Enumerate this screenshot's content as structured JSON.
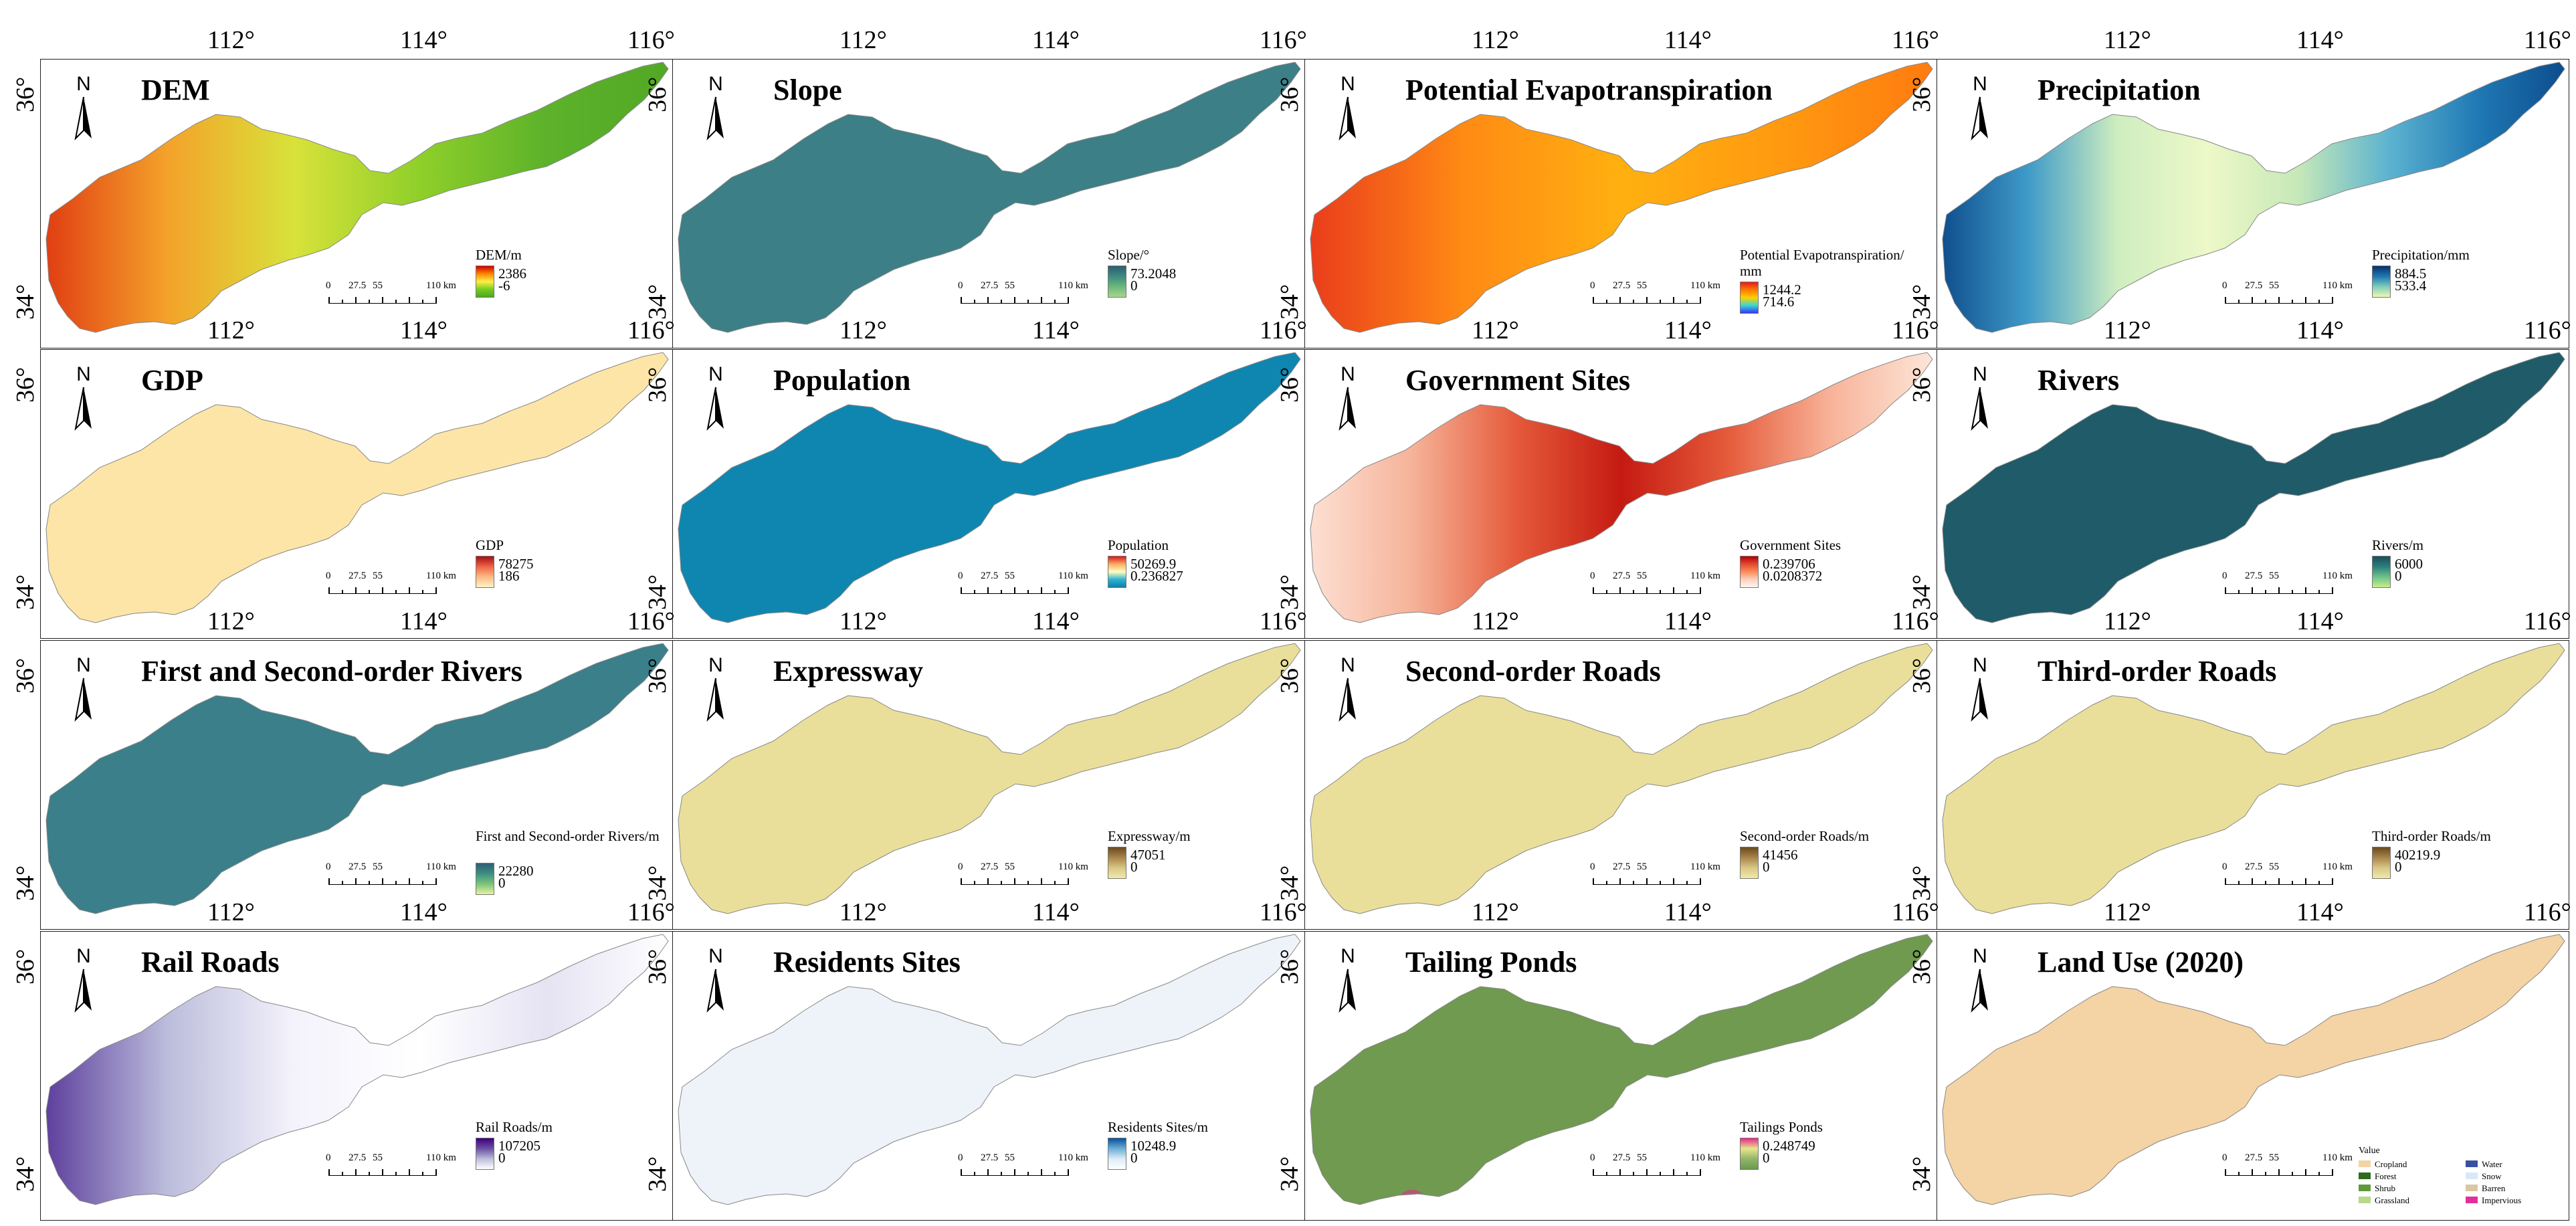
{
  "axis_labels": {
    "longitude": [
      "112°",
      "114°",
      "116°"
    ],
    "latitude": [
      "34°",
      "36°"
    ]
  },
  "north_label": "N",
  "scale_labels": [
    "0",
    "27.5",
    "55",
    "110 km"
  ],
  "panels": [
    {
      "title": "DEM",
      "legend_title": "DEM/m",
      "max": "2386",
      "min": "-6",
      "ramp": [
        "#cc0000",
        "#ff8800",
        "#ffee44",
        "#77cc22",
        "#4aa81e"
      ],
      "fill": "dem"
    },
    {
      "title": "Slope",
      "legend_title": "Slope/°",
      "max": "73.2048",
      "min": "0",
      "ramp": [
        "#2e5e72",
        "#3f8a82",
        "#6bb87a",
        "#a7d68b"
      ],
      "fill": "slope"
    },
    {
      "title": "Potential Evapotranspiration",
      "legend_title": "Potential Evapotranspiration/ mm",
      "max": "1244.2",
      "min": "714.6",
      "ramp": [
        "#e51c1c",
        "#ff7a00",
        "#ffd000",
        "#3ad9d0",
        "#3535ff"
      ],
      "fill": "pet"
    },
    {
      "title": "Precipitation",
      "legend_title": "Precipitation/mm",
      "max": "884.5",
      "min": "533.4",
      "ramp": [
        "#08306b",
        "#1f78b4",
        "#7fcdbb",
        "#edf8b1"
      ],
      "fill": "precip"
    },
    {
      "title": "GDP",
      "legend_title": "GDP",
      "max": "78275",
      "min": "186",
      "ramp": [
        "#a50f15",
        "#ef6548",
        "#fdbb84",
        "#fff3c4"
      ],
      "fill": "gdp"
    },
    {
      "title": "Population",
      "legend_title": "Population",
      "max": "50269.9",
      "min": "0.236827",
      "ramp": [
        "#d7191c",
        "#fdae61",
        "#ffffbf",
        "#2cb2d4",
        "#0e7fa6"
      ],
      "fill": "pop"
    },
    {
      "title": "Government Sites",
      "legend_title": "Government Sites",
      "max": "0.239706",
      "min": "0.0208372",
      "ramp": [
        "#b30000",
        "#e34a33",
        "#fc8d59",
        "#fdd0c0",
        "#fff5f0"
      ],
      "fill": "gov"
    },
    {
      "title": "Rivers",
      "legend_title": "Rivers/m",
      "max": "6000",
      "min": "0",
      "ramp": [
        "#1d4d5c",
        "#2c7f7c",
        "#6cc28a",
        "#c6f08a"
      ],
      "fill": "rivers"
    },
    {
      "title": "First and Second-order Rivers",
      "legend_title": "First and Second-order Rivers/m",
      "max": "22280",
      "min": "0",
      "ramp": [
        "#2f5f73",
        "#3c8f84",
        "#7cc479",
        "#e8f2a0"
      ],
      "fill": "rivers12"
    },
    {
      "title": "Expressway",
      "legend_title": "Expressway/m",
      "max": "47051",
      "min": "0",
      "ramp": [
        "#6b4a1e",
        "#a8854b",
        "#d9c786",
        "#f0eaa8"
      ],
      "fill": "road"
    },
    {
      "title": "Second-order Roads",
      "legend_title": "Second-order Roads/m",
      "max": "41456",
      "min": "0",
      "ramp": [
        "#6b4a1e",
        "#a8854b",
        "#d9c786",
        "#f0eaa8"
      ],
      "fill": "road2"
    },
    {
      "title": "Third-order Roads",
      "legend_title": "Third-order Roads/m",
      "max": "40219.9",
      "min": "0",
      "ramp": [
        "#6b4a1e",
        "#a8854b",
        "#d9c786",
        "#f0eaa8"
      ],
      "fill": "road3"
    },
    {
      "title": "Rail Roads",
      "legend_title": "Rail Roads/m",
      "max": "107205",
      "min": "0",
      "ramp": [
        "#3f007d",
        "#6a51a3",
        "#bcbddc",
        "#ffffff"
      ],
      "fill": "rail"
    },
    {
      "title": "Residents Sites",
      "legend_title": "Residents Sites/m",
      "max": "10248.9",
      "min": "0",
      "ramp": [
        "#08519c",
        "#6baed6",
        "#deebf7",
        "#ffffff"
      ],
      "fill": "res"
    },
    {
      "title": "Tailing Ponds",
      "legend_title": "Tailings Ponds",
      "max": "0.248749",
      "min": "0",
      "ramp": [
        "#e7298a",
        "#e6e68a",
        "#92b56a",
        "#6a9a4d"
      ],
      "fill": "tail"
    },
    {
      "title": "Land Use (2020)",
      "legend_title": "",
      "max": "",
      "min": "",
      "ramp": [],
      "fill": "lu"
    }
  ],
  "landuse_legend": {
    "title": "Value",
    "items": [
      {
        "label": "Cropland",
        "color": "#f4d3a4"
      },
      {
        "label": "Forest",
        "color": "#2d6a1e"
      },
      {
        "label": "Shrub",
        "color": "#5f9a3a"
      },
      {
        "label": "Grassland",
        "color": "#b9d88a"
      },
      {
        "label": "Water",
        "color": "#3a4fa0"
      },
      {
        "label": "Snow",
        "color": "#d8e8f8"
      },
      {
        "label": "Barren",
        "color": "#d9c9a0"
      },
      {
        "label": "Impervious",
        "color": "#e0309a"
      }
    ]
  }
}
